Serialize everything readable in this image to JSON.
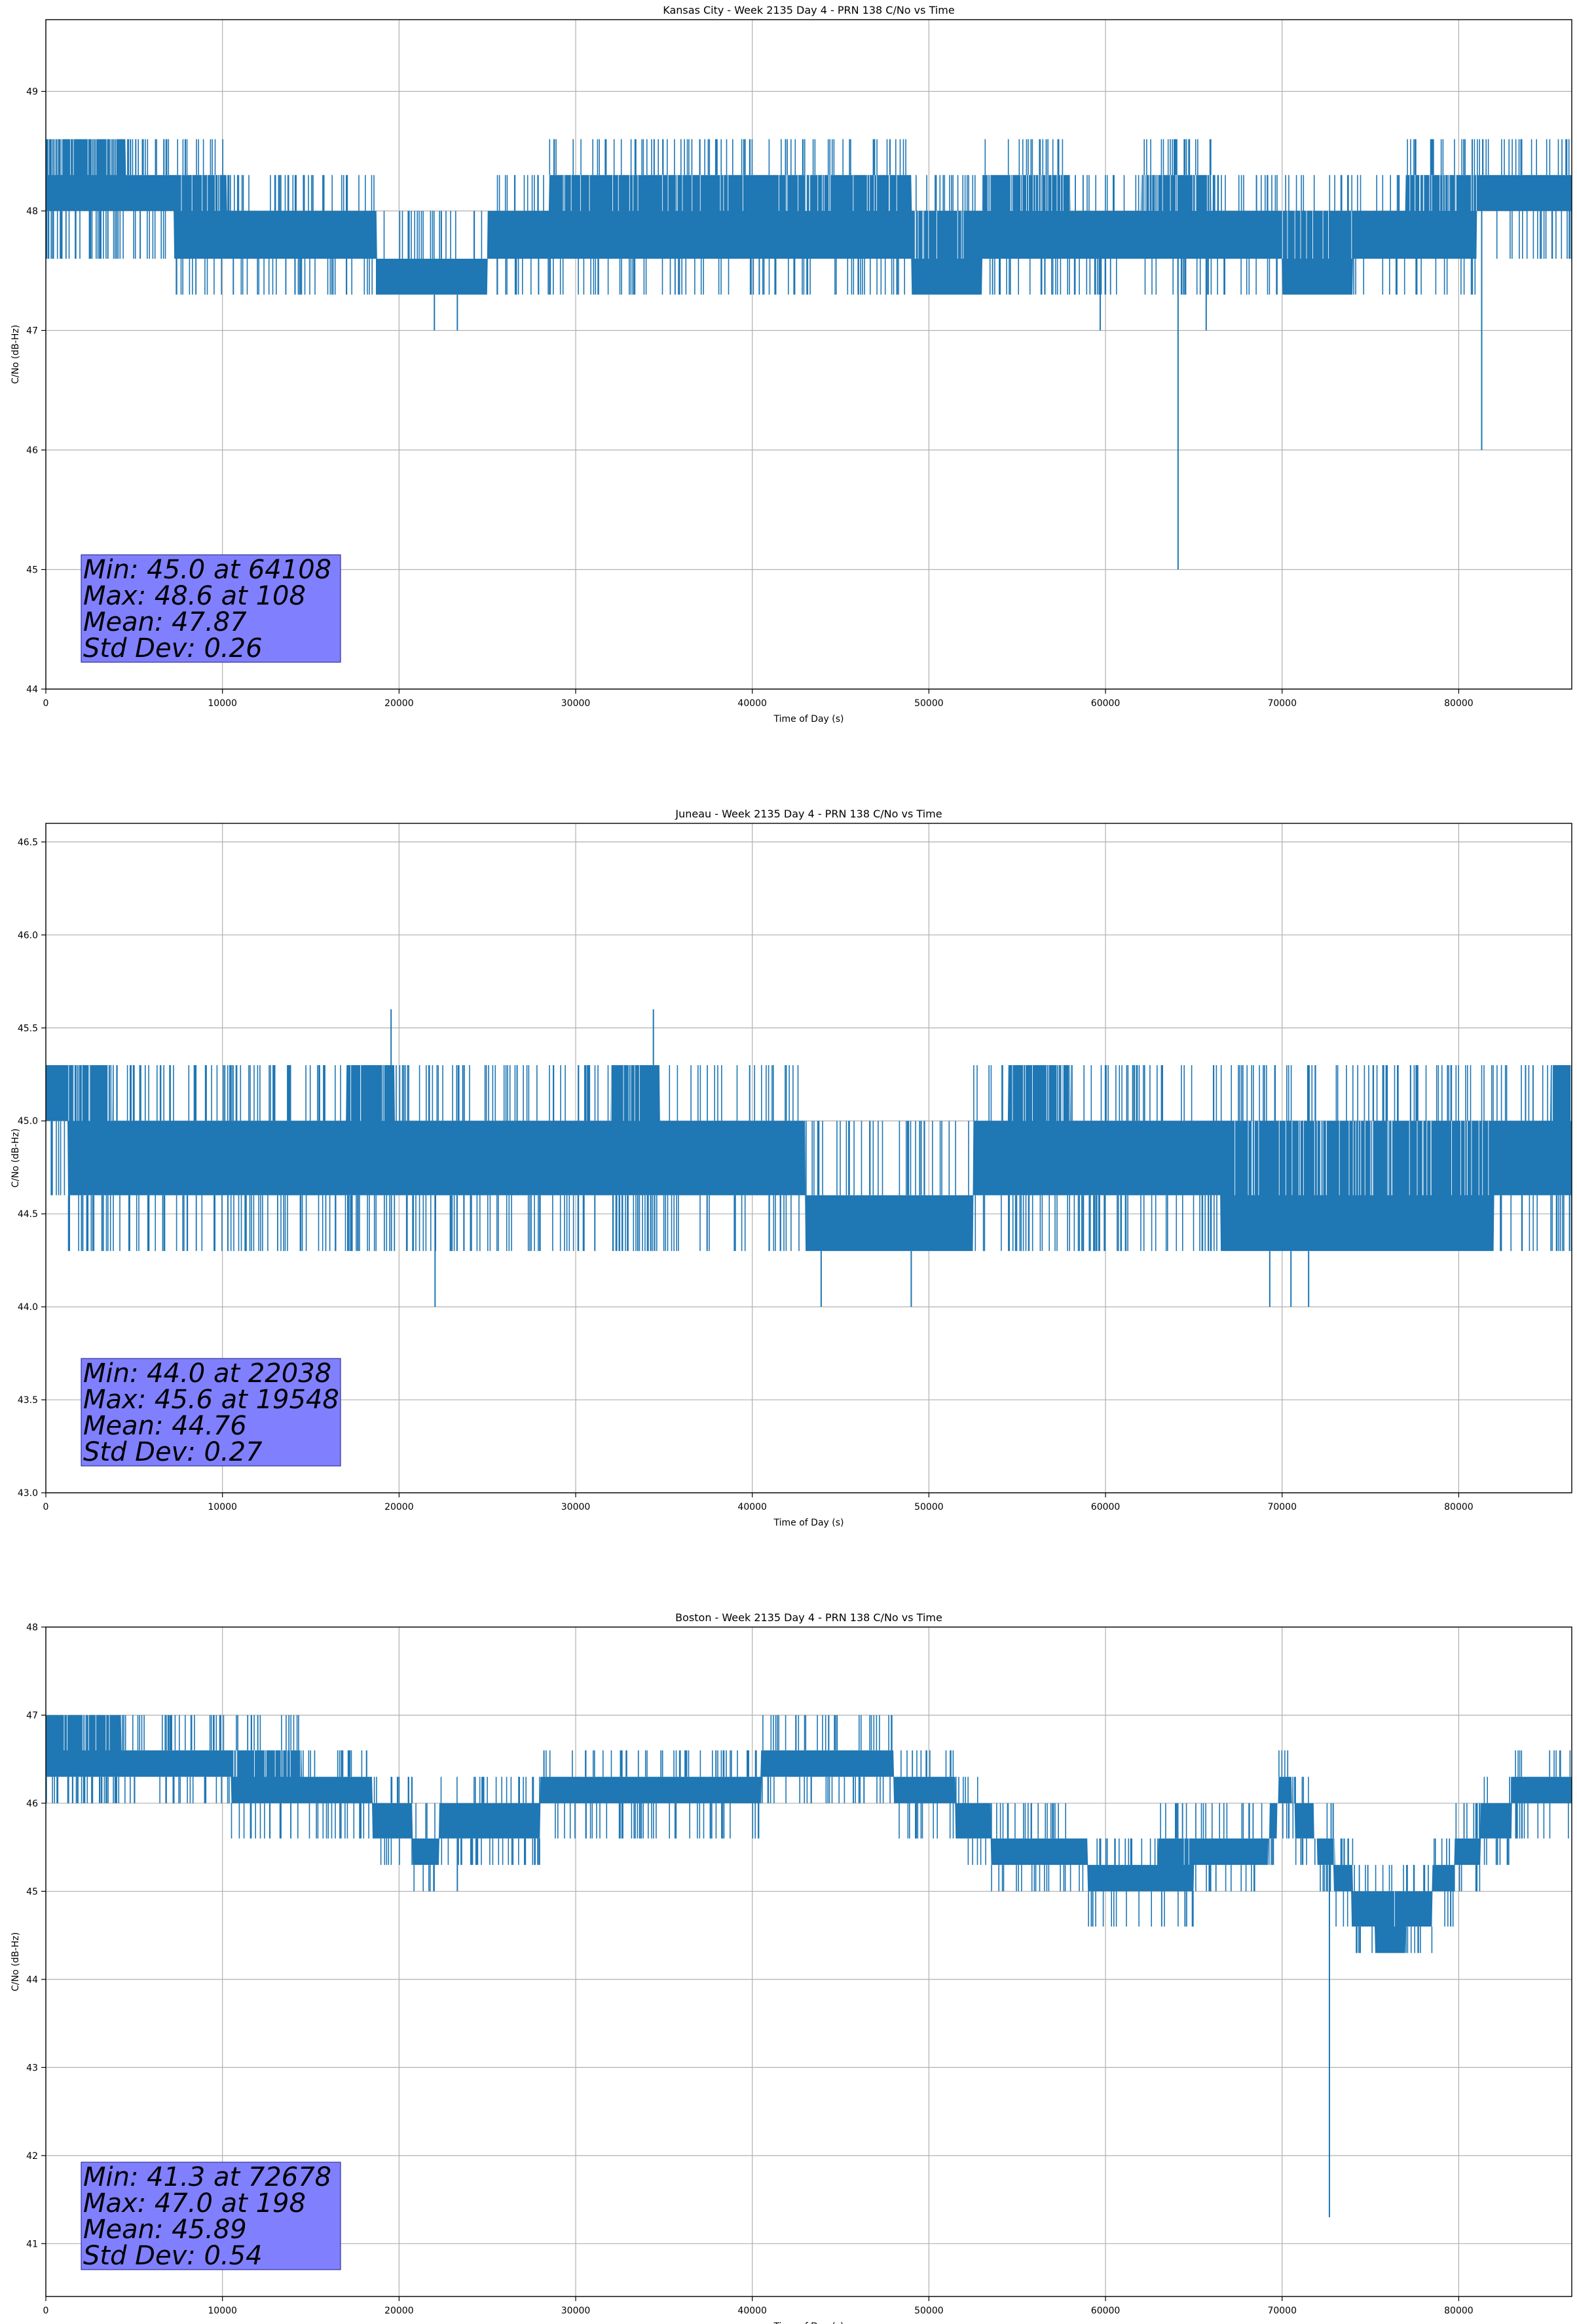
{
  "figure": {
    "background": "#ffffff"
  },
  "style": {
    "line_color": "#1f77b4",
    "grid_color": "#b0b0b0",
    "stats_box_fill": "#8080ff",
    "stats_box_edge": "#333399"
  },
  "chart_data": [
    {
      "type": "line",
      "title": "Kansas City - Week 2135 Day 4 - PRN 138 C/No vs Time",
      "xlabel": "Time of Day (s)",
      "ylabel": "C/No (dB-Hz)",
      "xlim": [
        0,
        86400
      ],
      "ylim": [
        44,
        49.6
      ],
      "xticks": [
        0,
        10000,
        20000,
        30000,
        40000,
        50000,
        60000,
        70000,
        80000
      ],
      "yticks": [
        44,
        45,
        46,
        47,
        48,
        49
      ],
      "ytick_labels": [
        "44",
        "45",
        "46",
        "47",
        "48",
        "49"
      ],
      "grid": true,
      "band": {
        "x": [
          0,
          3000,
          6000,
          8500,
          12000,
          17000,
          20500,
          23000,
          27000,
          30000,
          35000,
          40000,
          45000,
          48000,
          50000,
          56000,
          60000,
          64000,
          68000,
          72000,
          76000,
          78000,
          80000,
          82000,
          86400
        ],
        "lo": [
          48.0,
          48.0,
          48.0,
          47.6,
          47.6,
          47.6,
          47.3,
          47.3,
          47.6,
          47.6,
          47.6,
          47.6,
          47.6,
          47.6,
          47.3,
          47.6,
          47.6,
          47.6,
          47.6,
          47.3,
          47.6,
          47.6,
          47.6,
          48.0,
          48.0
        ],
        "hi": [
          48.6,
          48.6,
          48.3,
          48.3,
          48.0,
          48.0,
          47.6,
          47.6,
          48.0,
          48.3,
          48.3,
          48.3,
          48.3,
          48.3,
          48.0,
          48.3,
          48.0,
          48.3,
          48.0,
          48.0,
          48.0,
          48.3,
          48.3,
          48.3,
          48.3
        ]
      },
      "spikes": [
        {
          "x": 64108,
          "y": 45.0
        },
        {
          "x": 81300,
          "y": 46.0
        },
        {
          "x": 23300,
          "y": 47.0
        },
        {
          "x": 22000,
          "y": 47.0
        },
        {
          "x": 59700,
          "y": 47.0
        },
        {
          "x": 65700,
          "y": 47.0
        },
        {
          "x": 14300,
          "y": 47.3
        },
        {
          "x": 27900,
          "y": 47.3
        }
      ],
      "stats": [
        "Min: 45.0 at 64108",
        "Max: 48.6 at 108",
        "Mean: 47.87",
        "Std Dev: 0.26"
      ]
    },
    {
      "type": "line",
      "title": "Juneau - Week 2135 Day 4 - PRN 138 C/No vs Time",
      "xlabel": "Time of Day (s)",
      "ylabel": "C/No (dB-Hz)",
      "xlim": [
        0,
        86400
      ],
      "ylim": [
        43.0,
        46.6
      ],
      "xticks": [
        0,
        10000,
        20000,
        30000,
        40000,
        50000,
        60000,
        70000,
        80000
      ],
      "yticks": [
        43.0,
        43.5,
        44.0,
        44.5,
        45.0,
        45.5,
        46.0,
        46.5
      ],
      "ytick_labels": [
        "43.0",
        "43.5",
        "44.0",
        "44.5",
        "45.0",
        "45.5",
        "46.0",
        "46.5"
      ],
      "grid": true,
      "band": {
        "x": [
          0,
          2500,
          5000,
          10000,
          15000,
          19000,
          20500,
          25000,
          30000,
          34000,
          35500,
          42500,
          43500,
          52000,
          53000,
          56000,
          60000,
          66000,
          67000,
          70000,
          76000,
          80000,
          84000,
          86400
        ],
        "lo": [
          45.0,
          44.6,
          44.6,
          44.6,
          44.6,
          44.6,
          44.6,
          44.6,
          44.6,
          44.6,
          44.6,
          44.6,
          44.3,
          44.3,
          44.6,
          44.6,
          44.6,
          44.6,
          44.3,
          44.3,
          44.3,
          44.3,
          44.6,
          44.6
        ],
        "hi": [
          45.3,
          45.3,
          45.0,
          45.0,
          45.0,
          45.3,
          45.0,
          45.0,
          45.0,
          45.3,
          45.0,
          45.0,
          44.6,
          44.6,
          45.0,
          45.3,
          45.0,
          45.0,
          45.0,
          45.0,
          45.0,
          45.0,
          45.0,
          45.3
        ]
      },
      "spikes": [
        {
          "x": 19548,
          "y": 45.6
        },
        {
          "x": 34400,
          "y": 45.6
        },
        {
          "x": 22038,
          "y": 44.0
        },
        {
          "x": 43900,
          "y": 44.0
        },
        {
          "x": 49000,
          "y": 44.0
        },
        {
          "x": 69300,
          "y": 44.0
        },
        {
          "x": 70500,
          "y": 44.0
        },
        {
          "x": 71500,
          "y": 44.0
        }
      ],
      "stats": [
        "Min: 44.0 at 22038",
        "Max: 45.6 at 19548",
        "Mean: 44.76",
        "Std Dev: 0.27"
      ]
    },
    {
      "type": "line",
      "title": "Boston - Week 2135 Day 4 - PRN 138 C/No vs Time",
      "xlabel": "Time of Day (s)",
      "ylabel": "C/No (dB-Hz)",
      "xlim": [
        0,
        86400
      ],
      "ylim": [
        40.4,
        48
      ],
      "xticks": [
        0,
        10000,
        20000,
        30000,
        40000,
        50000,
        60000,
        70000,
        80000
      ],
      "yticks": [
        41,
        42,
        43,
        44,
        45,
        46,
        47,
        48
      ],
      "ytick_labels": [
        "41",
        "42",
        "43",
        "44",
        "45",
        "46",
        "47",
        "48"
      ],
      "grid": true,
      "band": {
        "x": [
          0,
          3000,
          5500,
          9000,
          12000,
          17000,
          20000,
          21500,
          23000,
          26000,
          30000,
          33000,
          38000,
          43000,
          46000,
          50000,
          53000,
          54000,
          56000,
          58000,
          60000,
          62000,
          64000,
          66000,
          69000,
          70000,
          72500,
          74500,
          76000,
          78000,
          79000,
          80500,
          82000,
          84000,
          86400
        ],
        "lo": [
          46.3,
          46.3,
          46.3,
          46.3,
          46.0,
          46.0,
          45.6,
          45.3,
          45.6,
          45.6,
          46.0,
          46.0,
          46.0,
          46.3,
          46.3,
          46.0,
          45.6,
          45.3,
          45.3,
          45.3,
          45.0,
          45.0,
          45.0,
          45.3,
          45.3,
          46.0,
          45.3,
          44.6,
          44.3,
          44.6,
          45.0,
          45.3,
          45.6,
          46.0,
          46.0
        ],
        "hi": [
          47.0,
          47.0,
          46.6,
          46.6,
          46.6,
          46.3,
          46.0,
          45.6,
          46.0,
          46.0,
          46.3,
          46.3,
          46.3,
          46.6,
          46.6,
          46.3,
          46.0,
          45.6,
          45.6,
          45.6,
          45.3,
          45.3,
          45.6,
          45.6,
          45.6,
          46.3,
          45.6,
          45.0,
          45.0,
          45.0,
          45.3,
          45.6,
          46.0,
          46.3,
          46.3
        ]
      },
      "spikes": [
        {
          "x": 72678,
          "y": 41.3
        },
        {
          "x": 23300,
          "y": 45.0
        },
        {
          "x": 44800,
          "y": 47.0
        },
        {
          "x": 59200,
          "y": 44.6
        },
        {
          "x": 64500,
          "y": 44.6
        }
      ],
      "stats": [
        "Min: 41.3 at 72678",
        "Max: 47.0 at 198",
        "Mean: 45.89",
        "Std Dev: 0.54"
      ]
    }
  ]
}
